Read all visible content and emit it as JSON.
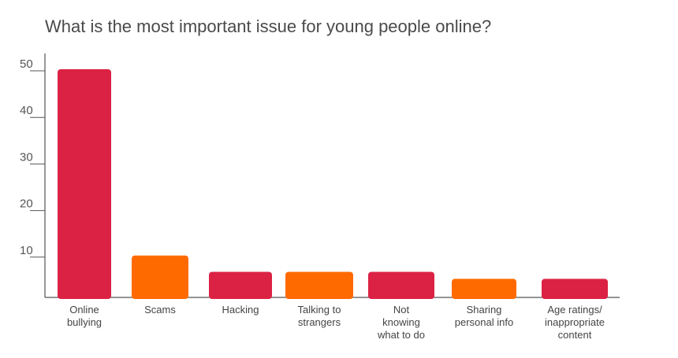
{
  "chart_data": {
    "type": "bar",
    "title": "What is the most important issue for young people online?",
    "xlabel": "",
    "ylabel": "",
    "ylim": [
      0,
      50
    ],
    "yticks": [
      10,
      20,
      30,
      40,
      50
    ],
    "grid": false,
    "categories": [
      [
        "Online",
        "bullying"
      ],
      [
        "Scams"
      ],
      [
        "Hacking"
      ],
      [
        "Talking to",
        "strangers"
      ],
      [
        "Not",
        "knowing",
        "what to do"
      ],
      [
        "Sharing",
        "personal info"
      ],
      [
        "Age ratings/",
        "inappropriate",
        "content"
      ]
    ],
    "values": [
      49,
      9,
      5.5,
      5.5,
      5.5,
      4,
      4
    ],
    "colors": [
      "#dc2244",
      "#ff6a00",
      "#dc2244",
      "#ff6a00",
      "#dc2244",
      "#ff6a00",
      "#dc2244"
    ],
    "axis_color": "#555555"
  }
}
